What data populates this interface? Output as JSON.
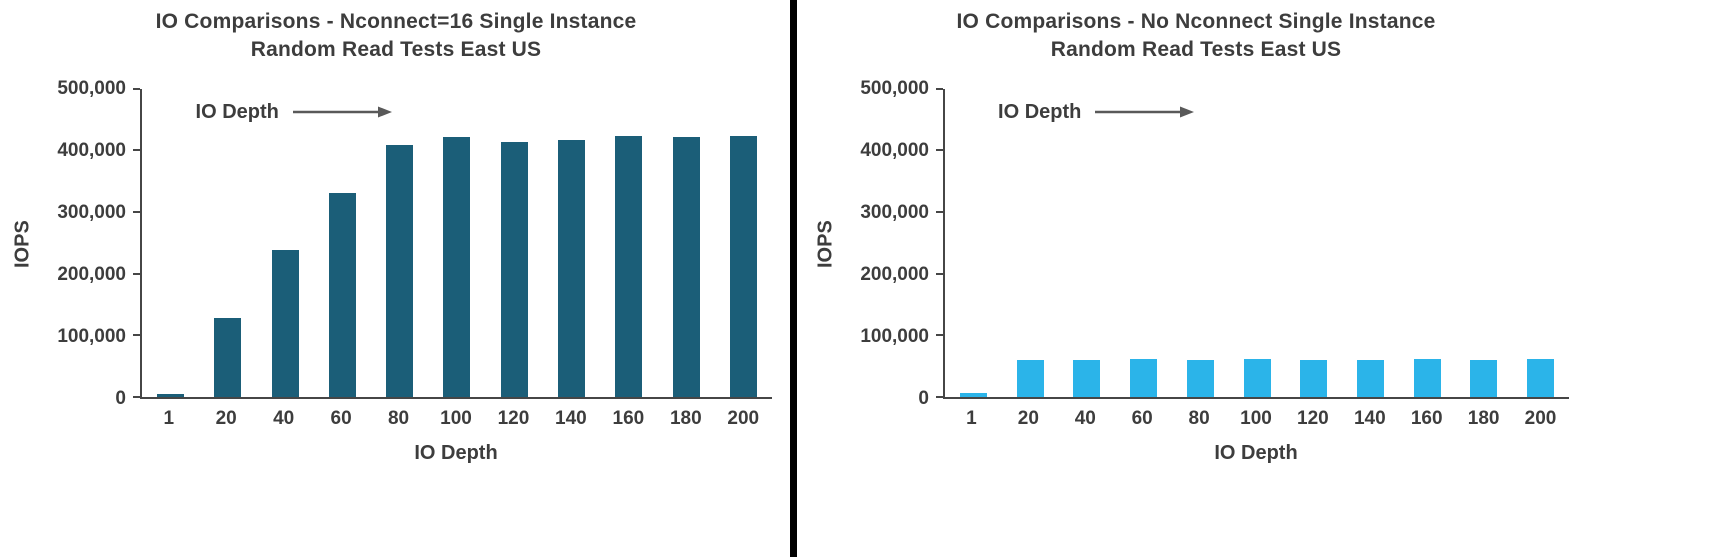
{
  "page": {
    "background": "#ffffff",
    "divider_color": "#000000",
    "text_color": "#3d3d3d",
    "axis_color": "#464646"
  },
  "chart_data": [
    {
      "type": "bar",
      "title": "IO Comparisons -  Nconnect=16 Single Instance Random Read Tests East US",
      "title_lines": [
        "IO Comparisons -  Nconnect=16 Single Instance",
        "Random Read Tests East US"
      ],
      "categories": [
        "1",
        "20",
        "40",
        "60",
        "80",
        "100",
        "120",
        "140",
        "160",
        "180",
        "200"
      ],
      "values": [
        5000,
        128000,
        238000,
        330000,
        408000,
        421000,
        413000,
        416000,
        424000,
        422000,
        424000
      ],
      "xlabel": "IO Depth",
      "ylabel": "IOPS",
      "ylim": [
        0,
        500000
      ],
      "yticks": [
        0,
        100000,
        200000,
        300000,
        400000,
        500000
      ],
      "ytick_labels": [
        "0",
        "100,000",
        "200,000",
        "300,000",
        "400,000",
        "500,000"
      ],
      "bar_color": "#1b5e78",
      "annotation_label": "IO Depth",
      "legend": "none",
      "grid": false
    },
    {
      "type": "bar",
      "title": "IO Comparisons - No Nconnect Single Instance Random Read Tests East US",
      "title_lines": [
        "IO Comparisons - No Nconnect Single Instance",
        "Random Read Tests East US"
      ],
      "categories": [
        "1",
        "20",
        "40",
        "60",
        "80",
        "100",
        "120",
        "140",
        "160",
        "180",
        "200"
      ],
      "values": [
        6000,
        60000,
        60000,
        62000,
        60000,
        62000,
        60000,
        60000,
        62000,
        60000,
        61000
      ],
      "xlabel": "IO Depth",
      "ylabel": "IOPS",
      "ylim": [
        0,
        500000
      ],
      "yticks": [
        0,
        100000,
        200000,
        300000,
        400000,
        500000
      ],
      "ytick_labels": [
        "0",
        "100,000",
        "200,000",
        "300,000",
        "400,000",
        "500,000"
      ],
      "bar_color": "#2bb4e9",
      "annotation_label": "IO Depth",
      "legend": "none",
      "grid": false
    }
  ]
}
